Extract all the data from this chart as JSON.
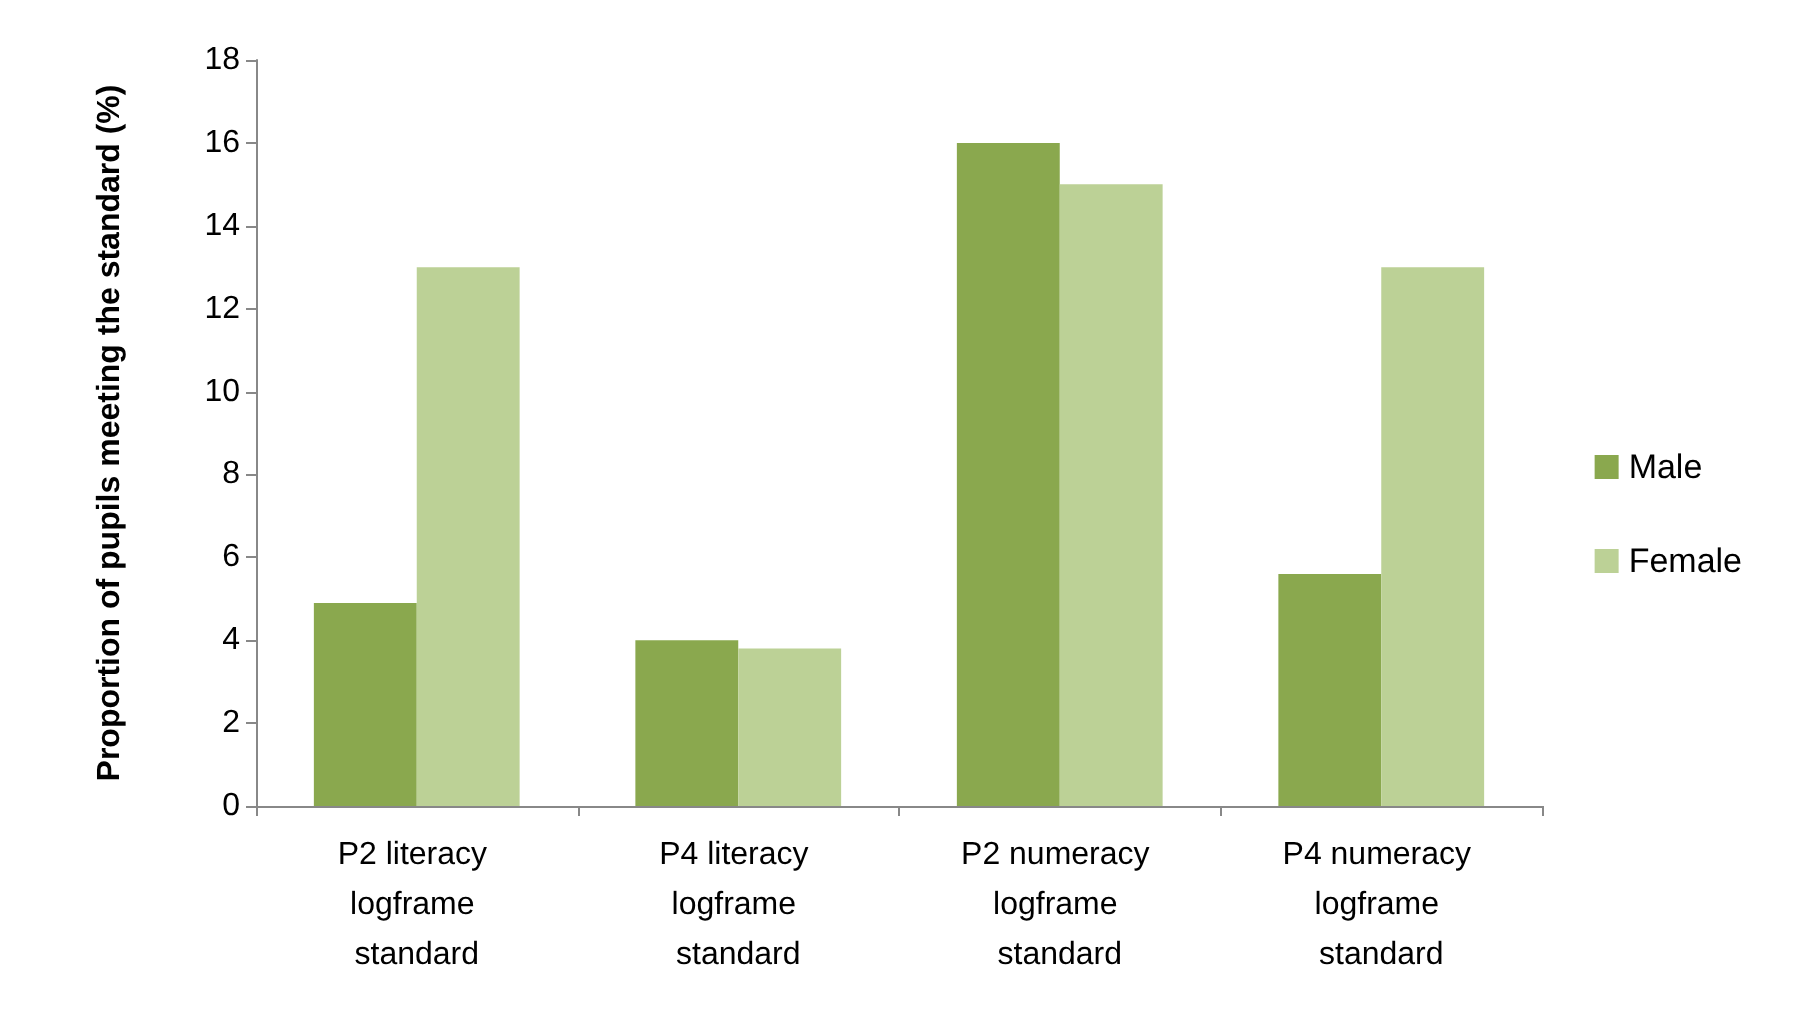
{
  "chart_data": {
    "type": "bar",
    "ylabel": "Proportion of pupils meeting the standard (%)",
    "categories": [
      "P2 literacy logframe standard",
      "P4 literacy logframe standard",
      "P2 numeracy logframe standard",
      "P4 numeracy logframe standard"
    ],
    "series": [
      {
        "name": "Male",
        "color": "#8aa84e",
        "values": [
          4.9,
          4.0,
          16,
          5.6
        ]
      },
      {
        "name": "Female",
        "color": "#bcd196",
        "values": [
          13,
          3.8,
          15,
          13
        ]
      }
    ],
    "ylim": [
      0,
      18
    ],
    "yticks": [
      0,
      2,
      4,
      6,
      8,
      10,
      12,
      14,
      16,
      18
    ],
    "grid": false,
    "legend": "right"
  }
}
